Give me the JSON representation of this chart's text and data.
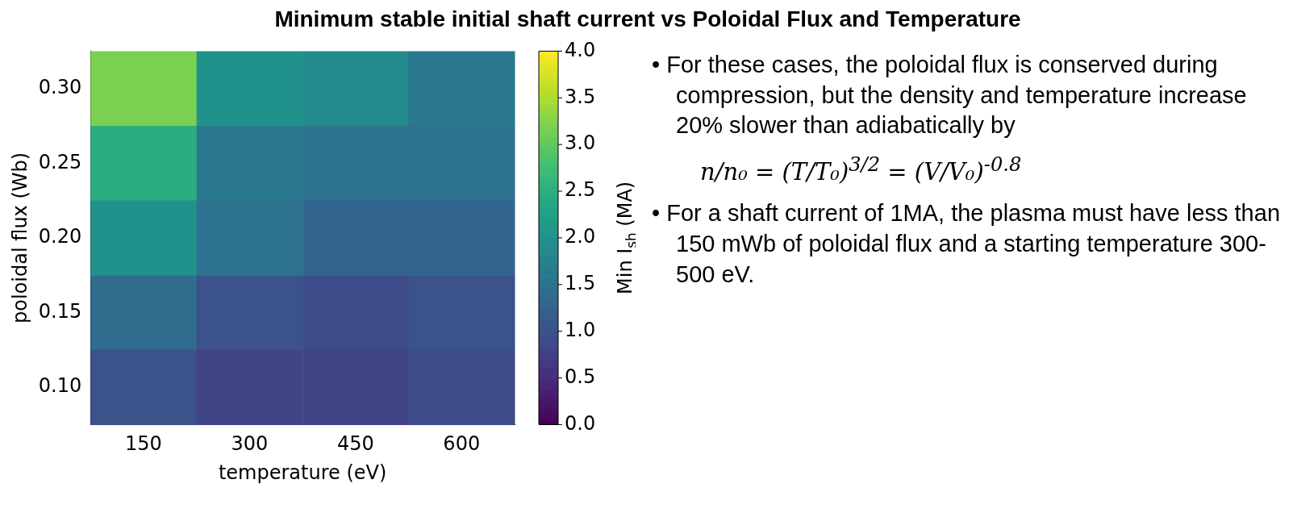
{
  "chart_data": {
    "type": "heatmap",
    "title": "Minimum stable initial shaft current vs Poloidal Flux and Temperature",
    "xlabel": "temperature (eV)",
    "ylabel": "poloidal flux (Wb)",
    "clabel": "Min I$_{sh}$ (MA)",
    "categories": [
      "150",
      "300",
      "450",
      "600"
    ],
    "y_categories": [
      "0.30",
      "0.25",
      "0.20",
      "0.15",
      "0.10"
    ],
    "cells": [
      [
        3.2,
        2.0,
        1.9,
        1.6
      ],
      [
        2.5,
        1.6,
        1.5,
        1.5
      ],
      [
        2.0,
        1.5,
        1.3,
        1.3
      ],
      [
        1.4,
        1.0,
        0.9,
        1.0
      ],
      [
        1.0,
        0.8,
        0.8,
        0.9
      ]
    ],
    "clim": [
      0,
      4
    ],
    "cticks": [
      {
        "value": 0,
        "label": "0.0"
      },
      0.5,
      {
        "value": 1,
        "label": "1.0"
      },
      1.5,
      {
        "value": 2,
        "label": "2.0"
      },
      2.5,
      {
        "value": 3,
        "label": "3.0"
      },
      3.5,
      {
        "value": 4,
        "label": "4.0"
      }
    ],
    "annotations": [
      "• For these cases, the poloidal flux is conserved during compression, but the density and temperature increase 20% slower than adiabatically by",
      "n/n₀ = (T/T₀)$^{3/2}$ = (V/V₀)$^{-0.8}$",
      "• For a shaft current of 1MA, the plasma must have less than 150 mWb of poloidal flux and a starting temperature 300-500 eV."
    ]
  }
}
